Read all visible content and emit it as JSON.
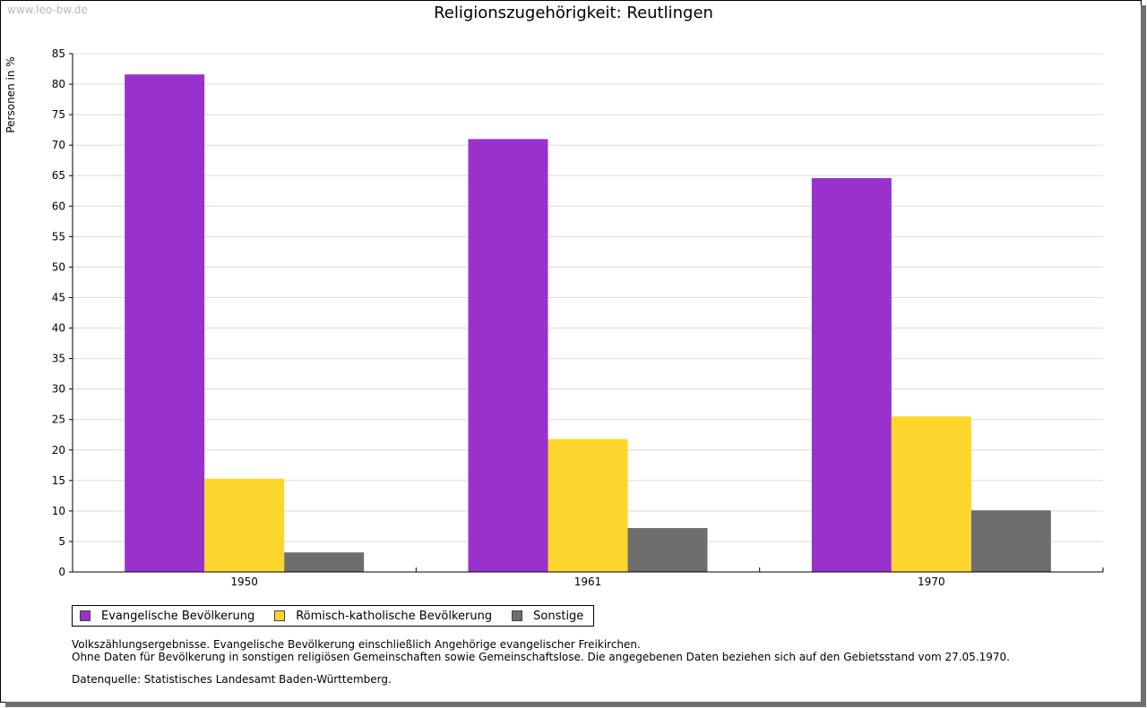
{
  "watermark": "www.leo-bw.de",
  "colors": {
    "evangelisch": "#9932cc",
    "katholisch": "#fcd62c",
    "sonstige": "#6e6e6e"
  },
  "chart_data": {
    "type": "bar",
    "title": "Religionszugehörigkeit: Reutlingen",
    "xlabel": "",
    "ylabel": "Personen in %",
    "ylim": [
      0,
      85
    ],
    "yticks": [
      0,
      5,
      10,
      15,
      20,
      25,
      30,
      35,
      40,
      45,
      50,
      55,
      60,
      65,
      70,
      75,
      80,
      85
    ],
    "grid": true,
    "categories": [
      "1950",
      "1961",
      "1970"
    ],
    "series": [
      {
        "name": "Evangelische Bevölkerung",
        "color": "#9932cc",
        "values": [
          81.6,
          71.0,
          64.6
        ]
      },
      {
        "name": "Römisch-katholische Bevölkerung",
        "color": "#fcd62c",
        "values": [
          15.3,
          21.8,
          25.5
        ]
      },
      {
        "name": "Sonstige",
        "color": "#6e6e6e",
        "values": [
          3.2,
          7.2,
          10.1
        ]
      }
    ],
    "legend_position": "bottom-left"
  },
  "notes": [
    "Volkszählungsergebnisse. Evangelische Bevölkerung einschließlich Angehörige evangelischer Freikirchen.",
    "Ohne Daten für Bevölkerung in sonstigen religiösen Gemeinschaften sowie Gemeinschaftslose. Die angegebenen Daten beziehen sich auf den Gebietsstand vom 27.05.1970."
  ],
  "source": "Datenquelle: Statistisches Landesamt Baden-Württemberg."
}
